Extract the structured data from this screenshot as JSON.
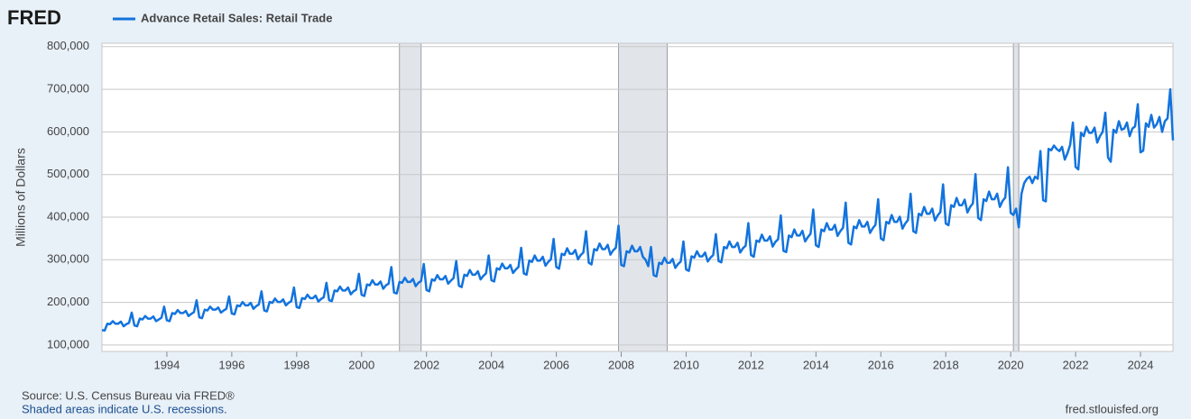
{
  "chart_data": {
    "type": "line",
    "logo": "FRED",
    "y_label": "Millions of Dollars",
    "source": "Source: U.S. Census Bureau via FRED®",
    "note": "Shaded areas indicate U.S. recessions.",
    "site": "fred.stlouisfed.org",
    "xlim": [
      "1992-01",
      "2025-01"
    ],
    "ylim": [
      85000,
      808000
    ],
    "xticks": [
      1994,
      1996,
      1998,
      2000,
      2002,
      2004,
      2006,
      2008,
      2010,
      2012,
      2014,
      2016,
      2018,
      2020,
      2022,
      2024
    ],
    "yticks": [
      {
        "value": 100000,
        "label": "100,000"
      },
      {
        "value": 200000,
        "label": "200,000"
      },
      {
        "value": 300000,
        "label": "300,000"
      },
      {
        "value": 400000,
        "label": "400,000"
      },
      {
        "value": 500000,
        "label": "500,000"
      },
      {
        "value": 600000,
        "label": "600,000"
      },
      {
        "value": 700000,
        "label": "700,000"
      },
      {
        "value": 800000,
        "label": "800,000"
      }
    ],
    "grid": true,
    "recessions": [
      [
        "2001-03",
        "2001-11"
      ],
      [
        "2007-12",
        "2009-06"
      ],
      [
        "2020-02",
        "2020-04"
      ]
    ],
    "recession_color": "#e1e5ea",
    "x": [
      "1992-01",
      "1992-02",
      "1992-03",
      "1992-04",
      "1992-05",
      "1992-06",
      "1992-07",
      "1992-08",
      "1992-09",
      "1992-10",
      "1992-11",
      "1992-12",
      "1993-01",
      "1993-02",
      "1993-03",
      "1993-04",
      "1993-05",
      "1993-06",
      "1993-07",
      "1993-08",
      "1993-09",
      "1993-10",
      "1993-11",
      "1993-12",
      "1994-01",
      "1994-02",
      "1994-03",
      "1994-04",
      "1994-05",
      "1994-06",
      "1994-07",
      "1994-08",
      "1994-09",
      "1994-10",
      "1994-11",
      "1994-12",
      "1995-01",
      "1995-02",
      "1995-03",
      "1995-04",
      "1995-05",
      "1995-06",
      "1995-07",
      "1995-08",
      "1995-09",
      "1995-10",
      "1995-11",
      "1995-12",
      "1996-01",
      "1996-02",
      "1996-03",
      "1996-04",
      "1996-05",
      "1996-06",
      "1996-07",
      "1996-08",
      "1996-09",
      "1996-10",
      "1996-11",
      "1996-12",
      "1997-01",
      "1997-02",
      "1997-03",
      "1997-04",
      "1997-05",
      "1997-06",
      "1997-07",
      "1997-08",
      "1997-09",
      "1997-10",
      "1997-11",
      "1997-12",
      "1998-01",
      "1998-02",
      "1998-03",
      "1998-04",
      "1998-05",
      "1998-06",
      "1998-07",
      "1998-08",
      "1998-09",
      "1998-10",
      "1998-11",
      "1998-12",
      "1999-01",
      "1999-02",
      "1999-03",
      "1999-04",
      "1999-05",
      "1999-06",
      "1999-07",
      "1999-08",
      "1999-09",
      "1999-10",
      "1999-11",
      "1999-12",
      "2000-01",
      "2000-02",
      "2000-03",
      "2000-04",
      "2000-05",
      "2000-06",
      "2000-07",
      "2000-08",
      "2000-09",
      "2000-10",
      "2000-11",
      "2000-12",
      "2001-01",
      "2001-02",
      "2001-03",
      "2001-04",
      "2001-05",
      "2001-06",
      "2001-07",
      "2001-08",
      "2001-09",
      "2001-10",
      "2001-11",
      "2001-12",
      "2002-01",
      "2002-02",
      "2002-03",
      "2002-04",
      "2002-05",
      "2002-06",
      "2002-07",
      "2002-08",
      "2002-09",
      "2002-10",
      "2002-11",
      "2002-12",
      "2003-01",
      "2003-02",
      "2003-03",
      "2003-04",
      "2003-05",
      "2003-06",
      "2003-07",
      "2003-08",
      "2003-09",
      "2003-10",
      "2003-11",
      "2003-12",
      "2004-01",
      "2004-02",
      "2004-03",
      "2004-04",
      "2004-05",
      "2004-06",
      "2004-07",
      "2004-08",
      "2004-09",
      "2004-10",
      "2004-11",
      "2004-12",
      "2005-01",
      "2005-02",
      "2005-03",
      "2005-04",
      "2005-05",
      "2005-06",
      "2005-07",
      "2005-08",
      "2005-09",
      "2005-10",
      "2005-11",
      "2005-12",
      "2006-01",
      "2006-02",
      "2006-03",
      "2006-04",
      "2006-05",
      "2006-06",
      "2006-07",
      "2006-08",
      "2006-09",
      "2006-10",
      "2006-11",
      "2006-12",
      "2007-01",
      "2007-02",
      "2007-03",
      "2007-04",
      "2007-05",
      "2007-06",
      "2007-07",
      "2007-08",
      "2007-09",
      "2007-10",
      "2007-11",
      "2007-12",
      "2008-01",
      "2008-02",
      "2008-03",
      "2008-04",
      "2008-05",
      "2008-06",
      "2008-07",
      "2008-08",
      "2008-09",
      "2008-10",
      "2008-11",
      "2008-12",
      "2009-01",
      "2009-02",
      "2009-03",
      "2009-04",
      "2009-05",
      "2009-06",
      "2009-07",
      "2009-08",
      "2009-09",
      "2009-10",
      "2009-11",
      "2009-12",
      "2010-01",
      "2010-02",
      "2010-03",
      "2010-04",
      "2010-05",
      "2010-06",
      "2010-07",
      "2010-08",
      "2010-09",
      "2010-10",
      "2010-11",
      "2010-12",
      "2011-01",
      "2011-02",
      "2011-03",
      "2011-04",
      "2011-05",
      "2011-06",
      "2011-07",
      "2011-08",
      "2011-09",
      "2011-10",
      "2011-11",
      "2011-12",
      "2012-01",
      "2012-02",
      "2012-03",
      "2012-04",
      "2012-05",
      "2012-06",
      "2012-07",
      "2012-08",
      "2012-09",
      "2012-10",
      "2012-11",
      "2012-12",
      "2013-01",
      "2013-02",
      "2013-03",
      "2013-04",
      "2013-05",
      "2013-06",
      "2013-07",
      "2013-08",
      "2013-09",
      "2013-10",
      "2013-11",
      "2013-12",
      "2014-01",
      "2014-02",
      "2014-03",
      "2014-04",
      "2014-05",
      "2014-06",
      "2014-07",
      "2014-08",
      "2014-09",
      "2014-10",
      "2014-11",
      "2014-12",
      "2015-01",
      "2015-02",
      "2015-03",
      "2015-04",
      "2015-05",
      "2015-06",
      "2015-07",
      "2015-08",
      "2015-09",
      "2015-10",
      "2015-11",
      "2015-12",
      "2016-01",
      "2016-02",
      "2016-03",
      "2016-04",
      "2016-05",
      "2016-06",
      "2016-07",
      "2016-08",
      "2016-09",
      "2016-10",
      "2016-11",
      "2016-12",
      "2017-01",
      "2017-02",
      "2017-03",
      "2017-04",
      "2017-05",
      "2017-06",
      "2017-07",
      "2017-08",
      "2017-09",
      "2017-10",
      "2017-11",
      "2017-12",
      "2018-01",
      "2018-02",
      "2018-03",
      "2018-04",
      "2018-05",
      "2018-06",
      "2018-07",
      "2018-08",
      "2018-09",
      "2018-10",
      "2018-11",
      "2018-12",
      "2019-01",
      "2019-02",
      "2019-03",
      "2019-04",
      "2019-05",
      "2019-06",
      "2019-07",
      "2019-08",
      "2019-09",
      "2019-10",
      "2019-11",
      "2019-12",
      "2020-01",
      "2020-02",
      "2020-03",
      "2020-04",
      "2020-05",
      "2020-06",
      "2020-07",
      "2020-08",
      "2020-09",
      "2020-10",
      "2020-11",
      "2020-12",
      "2021-01",
      "2021-02",
      "2021-03",
      "2021-04",
      "2021-05",
      "2021-06",
      "2021-07",
      "2021-08",
      "2021-09",
      "2021-10",
      "2021-11",
      "2021-12",
      "2022-01",
      "2022-02",
      "2022-03",
      "2022-04",
      "2022-05",
      "2022-06",
      "2022-07",
      "2022-08",
      "2022-09",
      "2022-10",
      "2022-11",
      "2022-12",
      "2023-01",
      "2023-02",
      "2023-03",
      "2023-04",
      "2023-05",
      "2023-06",
      "2023-07",
      "2023-08",
      "2023-09",
      "2023-10",
      "2023-11",
      "2023-12",
      "2024-01",
      "2024-02",
      "2024-03",
      "2024-04",
      "2024-05",
      "2024-06",
      "2024-07",
      "2024-08",
      "2024-09",
      "2024-10",
      "2024-11",
      "2024-12",
      "2025-01"
    ],
    "series": [
      {
        "name": "Advance Retail Sales: Retail Trade",
        "color": "#1273de",
        "values": [
          135000,
          134000,
          150000,
          149000,
          156000,
          150000,
          150000,
          155000,
          144000,
          149000,
          152000,
          176000,
          146000,
          144000,
          162000,
          160000,
          168000,
          162000,
          162000,
          167000,
          156000,
          160000,
          164000,
          190000,
          158000,
          156000,
          175000,
          173000,
          182000,
          175000,
          175000,
          180000,
          168000,
          173000,
          177000,
          205000,
          165000,
          163000,
          183000,
          181000,
          190000,
          183000,
          183000,
          188000,
          176000,
          181000,
          185000,
          214000,
          174000,
          172000,
          193000,
          191000,
          201000,
          193000,
          193000,
          199000,
          185000,
          191000,
          195000,
          226000,
          181000,
          179000,
          201000,
          199000,
          209000,
          201000,
          201000,
          207000,
          193000,
          199000,
          203000,
          235000,
          189000,
          187000,
          210000,
          208000,
          218000,
          210000,
          210000,
          216000,
          202000,
          208000,
          212000,
          246000,
          205000,
          203000,
          228000,
          226000,
          237000,
          228000,
          228000,
          235000,
          219000,
          226000,
          230000,
          267000,
          218000,
          215000,
          242000,
          240000,
          252000,
          242000,
          242000,
          249000,
          232000,
          240000,
          244000,
          283000,
          223000,
          221000,
          248000,
          246000,
          258000,
          248000,
          248000,
          255000,
          238000,
          246000,
          250000,
          290000,
          229000,
          226000,
          254000,
          251000,
          264000,
          254000,
          254000,
          262000,
          244000,
          251000,
          257000,
          297000,
          239000,
          236000,
          265000,
          262000,
          276000,
          265000,
          265000,
          273000,
          254000,
          262000,
          268000,
          310000,
          252000,
          249000,
          280000,
          277000,
          291000,
          280000,
          280000,
          288000,
          269000,
          277000,
          283000,
          328000,
          268000,
          265000,
          298000,
          295000,
          310000,
          298000,
          298000,
          307000,
          286000,
          295000,
          301000,
          349000,
          283000,
          279000,
          314000,
          311000,
          327000,
          314000,
          314000,
          323000,
          301000,
          311000,
          317000,
          367000,
          293000,
          289000,
          325000,
          322000,
          338000,
          325000,
          325000,
          335000,
          312000,
          322000,
          328000,
          380000,
          288000,
          285000,
          320000,
          317000,
          333000,
          320000,
          320000,
          330000,
          307000,
          300000,
          285000,
          330000,
          264000,
          261000,
          293000,
          290000,
          305000,
          293000,
          293000,
          302000,
          281000,
          290000,
          296000,
          343000,
          277000,
          274000,
          308000,
          305000,
          320000,
          308000,
          308000,
          317000,
          296000,
          305000,
          311000,
          360000,
          297000,
          294000,
          330000,
          327000,
          343000,
          330000,
          330000,
          340000,
          317000,
          327000,
          333000,
          386000,
          311000,
          307000,
          345000,
          342000,
          359000,
          345000,
          345000,
          355000,
          331000,
          342000,
          348000,
          404000,
          321000,
          318000,
          357000,
          353000,
          371000,
          357000,
          357000,
          368000,
          343000,
          353000,
          361000,
          418000,
          334000,
          330000,
          371000,
          367000,
          386000,
          371000,
          371000,
          382000,
          356000,
          367000,
          375000,
          434000,
          340000,
          336000,
          378000,
          374000,
          393000,
          378000,
          378000,
          389000,
          363000,
          374000,
          382000,
          442000,
          350000,
          346000,
          389000,
          385000,
          405000,
          389000,
          389000,
          401000,
          373000,
          385000,
          393000,
          455000,
          367000,
          363000,
          408000,
          404000,
          424000,
          408000,
          408000,
          420000,
          392000,
          404000,
          412000,
          477000,
          385000,
          381000,
          428000,
          424000,
          445000,
          428000,
          428000,
          441000,
          411000,
          424000,
          432000,
          501000,
          398000,
          393000,
          442000,
          438000,
          460000,
          442000,
          442000,
          455000,
          424000,
          438000,
          446000,
          517000,
          410000,
          405000,
          420000,
          376000,
          455000,
          480000,
          490000,
          495000,
          480000,
          495000,
          490000,
          555000,
          440000,
          437000,
          560000,
          557000,
          568000,
          560000,
          555000,
          565000,
          535000,
          550000,
          570000,
          622000,
          518000,
          512000,
          598000,
          590000,
          612000,
          598000,
          598000,
          610000,
          575000,
          590000,
          600000,
          645000,
          540000,
          530000,
          605000,
          598000,
          625000,
          605000,
          608000,
          622000,
          590000,
          608000,
          613000,
          665000,
          552000,
          556000,
          620000,
          612000,
          640000,
          610000,
          618000,
          635000,
          600000,
          625000,
          632000,
          700000,
          580000
        ]
      }
    ]
  }
}
